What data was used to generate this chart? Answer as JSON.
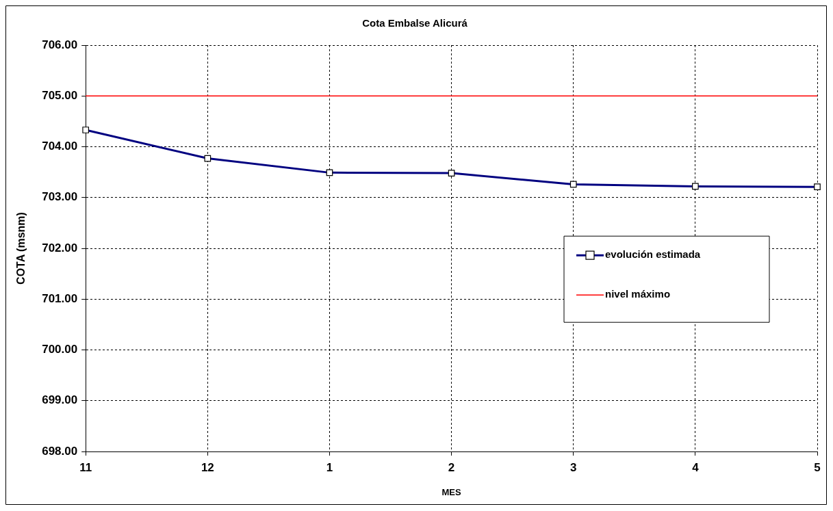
{
  "chart_data": {
    "type": "line",
    "title": "Cota Embalse Alicurá",
    "xlabel": "MES",
    "ylabel": "COTA (msnm)",
    "categories": [
      "11",
      "12",
      "1",
      "2",
      "3",
      "4",
      "5"
    ],
    "series": [
      {
        "name": "evolución estimada",
        "color": "#000080",
        "values": [
          704.33,
          703.77,
          703.49,
          703.48,
          703.26,
          703.22,
          703.21
        ]
      }
    ],
    "ref_lines": [
      {
        "axis": "y",
        "value": 705,
        "label": "nivel máximo",
        "color": "#ff0000"
      }
    ],
    "ylim": [
      698,
      706
    ],
    "yticks": [
      {
        "value": 698,
        "label": "698.00"
      },
      {
        "value": 699,
        "label": "699.00"
      },
      {
        "value": 700,
        "label": "700.00"
      },
      {
        "value": 701,
        "label": "701.00"
      },
      {
        "value": 702,
        "label": "702.00"
      },
      {
        "value": 703,
        "label": "703.00"
      },
      {
        "value": 704,
        "label": "704.00"
      },
      {
        "value": 705,
        "label": "705.00"
      },
      {
        "value": 706,
        "label": "706.00"
      }
    ],
    "grid": true,
    "legend": "right",
    "marker": "square",
    "line_style": "solid"
  }
}
